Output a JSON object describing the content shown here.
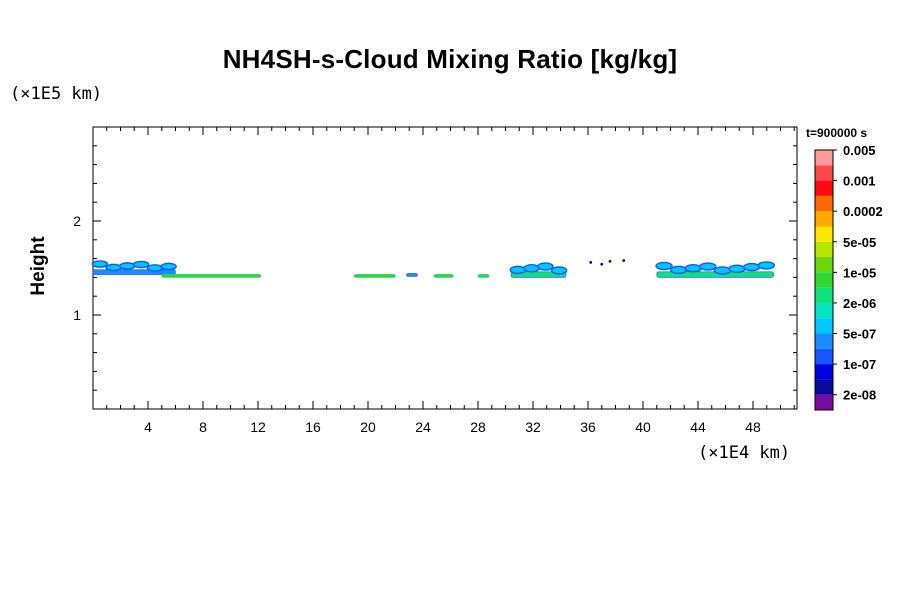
{
  "chart_data": {
    "type": "heatmap",
    "title": "NH4SH-s-Cloud Mixing Ratio [kg/kg]",
    "xlabel": "",
    "ylabel": "Height",
    "x_unit_label": "(×1E4 km)",
    "y_unit_label": "(×1E5 km)",
    "time_label": "t=900000 s",
    "xlim": [
      0,
      51.2
    ],
    "ylim": [
      0,
      3.0
    ],
    "x_ticks": [
      4,
      8,
      12,
      16,
      20,
      24,
      28,
      32,
      36,
      40,
      44,
      48
    ],
    "y_ticks": [
      1,
      2
    ],
    "x_tick_labels": [
      "4",
      "8",
      "12",
      "16",
      "20",
      "24",
      "28",
      "32",
      "36",
      "40",
      "44",
      "48"
    ],
    "y_tick_labels": [
      "1",
      "2"
    ],
    "colorbar": {
      "colors": [
        "#7a0aa6",
        "#0a0a9c",
        "#0000e6",
        "#1656ff",
        "#1a8cff",
        "#00c8ff",
        "#00e6c0",
        "#10e07a",
        "#2ed82e",
        "#68d810",
        "#b4e600",
        "#ffe600",
        "#ffa800",
        "#ff6a00",
        "#ff0a0a",
        "#ff4848",
        "#ff9a9a"
      ],
      "labels": [
        "2e-08",
        "1e-07",
        "5e-07",
        "2e-06",
        "1e-05",
        "5e-05",
        "0.0002",
        "0.001",
        "0.005"
      ]
    },
    "clouds": [
      {
        "x0": 0.0,
        "x1": 6.0,
        "y0": 1.43,
        "y1": 1.58,
        "level": "5e-07"
      },
      {
        "x0": 5.0,
        "x1": 12.2,
        "y0": 1.4,
        "y1": 1.45,
        "level": "1e-05"
      },
      {
        "x0": 19.0,
        "x1": 22.0,
        "y0": 1.4,
        "y1": 1.45,
        "level": "1e-05"
      },
      {
        "x0": 22.8,
        "x1": 23.6,
        "y0": 1.41,
        "y1": 1.44,
        "level": "5e-07"
      },
      {
        "x0": 24.8,
        "x1": 26.2,
        "y0": 1.4,
        "y1": 1.44,
        "level": "1e-05"
      },
      {
        "x0": 28.0,
        "x1": 28.8,
        "y0": 1.4,
        "y1": 1.43,
        "level": "1e-05"
      },
      {
        "x0": 30.4,
        "x1": 34.4,
        "y0": 1.4,
        "y1": 1.57,
        "level": "2e-06"
      },
      {
        "x0": 41.0,
        "x1": 49.5,
        "y0": 1.4,
        "y1": 1.57,
        "level": "2e-06"
      }
    ]
  }
}
